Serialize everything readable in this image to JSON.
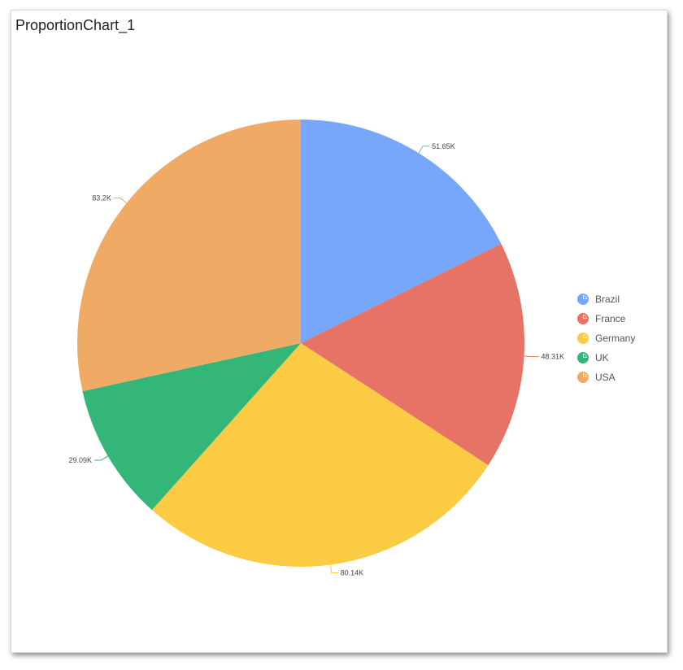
{
  "title": "ProportionChart_1",
  "chart_data": {
    "type": "pie",
    "categories": [
      "Brazil",
      "France",
      "Germany",
      "UK",
      "USA"
    ],
    "values": [
      51.65,
      48.31,
      80.14,
      29.09,
      83.2
    ],
    "labels": [
      "51.65K",
      "48.31K",
      "80.14K",
      "29.09K",
      "83.2K"
    ],
    "colors": [
      "#76a7fa",
      "#e77366",
      "#fbcb43",
      "#34b679",
      "#efaa66"
    ],
    "legend_position": "right",
    "start_angle": "top, clockwise"
  }
}
